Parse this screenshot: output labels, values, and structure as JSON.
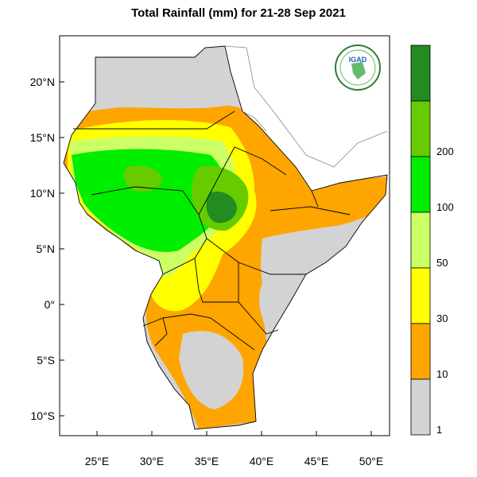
{
  "map": {
    "title": "Total Rainfall (mm) for 21-28 Sep 2021",
    "lat_ticks": [
      "20°N",
      "15°N",
      "10°N",
      "5°N",
      "0°",
      "5°S",
      "10°S"
    ],
    "lon_ticks": [
      "25°E",
      "30°E",
      "35°E",
      "40°E",
      "45°E",
      "50°E"
    ],
    "logo_text": "IGAD",
    "extent": {
      "lon_min": 22,
      "lon_max": 51.5,
      "lat_min": -11.5,
      "lat_max": 24
    }
  },
  "legend": {
    "unit": "mm",
    "bins": [
      {
        "label": "",
        "color": "#228B22"
      },
      {
        "label": "200",
        "color": "#66CC00"
      },
      {
        "label": "100",
        "color": "#00EE00"
      },
      {
        "label": "50",
        "color": "#CCFF66"
      },
      {
        "label": "30",
        "color": "#FFFF00"
      },
      {
        "label": "10",
        "color": "#FFA500"
      },
      {
        "label": "1",
        "color": "#D3D3D3"
      }
    ]
  },
  "colors": {
    "dry": "#D3D3D3",
    "orange": "#FFA500",
    "yellow": "#FFFF00",
    "light_green": "#CCFF66",
    "green": "#00EE00",
    "mid_green": "#66CC00",
    "dark_green": "#228B22"
  }
}
